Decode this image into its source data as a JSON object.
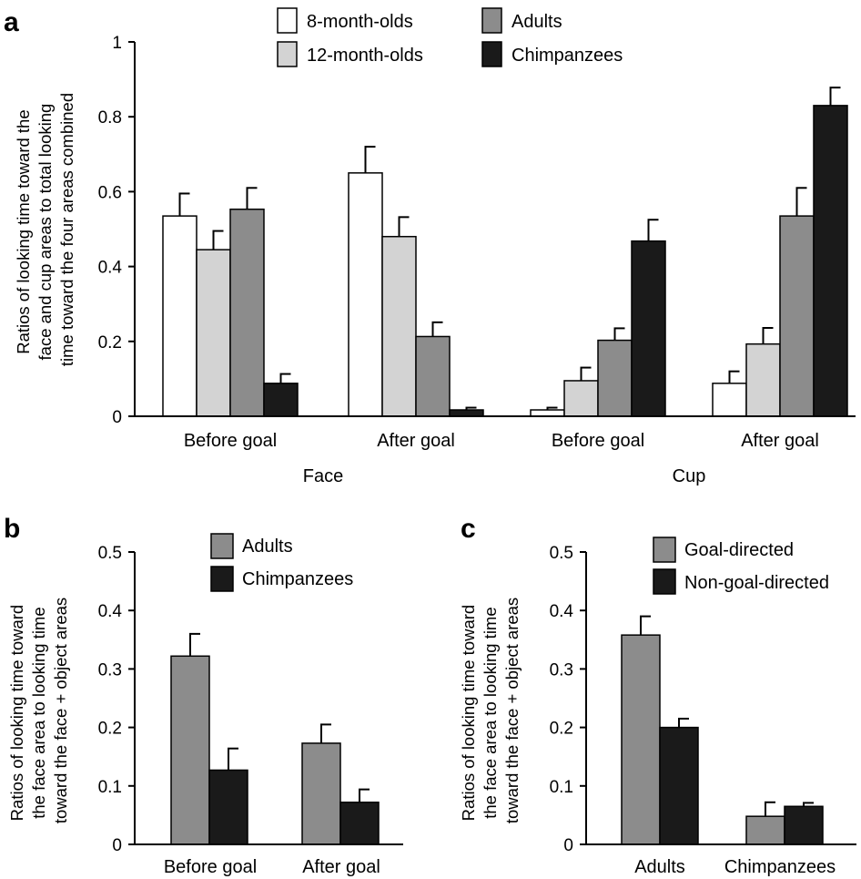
{
  "chart_data": [
    {
      "panel": "a",
      "type": "bar",
      "groups": [
        "Face",
        "Cup"
      ],
      "categories": [
        "Before goal",
        "After goal",
        "Before goal",
        "After goal"
      ],
      "ylabel": [
        "Ratios of looking time toward the",
        "face and cup areas to total looking",
        "time toward the four areas combined"
      ],
      "ylim": [
        0,
        1
      ],
      "yticks": [
        "0",
        "0.2",
        "0.4",
        "0.6",
        "0.8",
        "1"
      ],
      "ytick_values": [
        0,
        0.2,
        0.4,
        0.6,
        0.8,
        1
      ],
      "legend": "top-center",
      "series": [
        {
          "name": "8-month-olds",
          "color": "#ffffff",
          "values": [
            0.535,
            0.65,
            0.017,
            0.088
          ],
          "errors": [
            0.06,
            0.07,
            0.006,
            0.032
          ]
        },
        {
          "name": "12-month-olds",
          "color": "#d3d3d3",
          "values": [
            0.445,
            0.48,
            0.095,
            0.193
          ],
          "errors": [
            0.05,
            0.052,
            0.035,
            0.043
          ]
        },
        {
          "name": "Adults",
          "color": "#8c8c8c",
          "values": [
            0.553,
            0.213,
            0.203,
            0.535
          ],
          "errors": [
            0.057,
            0.038,
            0.032,
            0.075
          ]
        },
        {
          "name": "Chimpanzees",
          "color": "#1a1a1a",
          "values": [
            0.088,
            0.017,
            0.468,
            0.83
          ],
          "errors": [
            0.025,
            0.006,
            0.057,
            0.048
          ]
        }
      ]
    },
    {
      "panel": "b",
      "type": "bar",
      "categories": [
        "Before goal",
        "After goal"
      ],
      "ylabel": [
        "Ratios of looking time toward",
        "the face area to looking time",
        "toward the face + object areas"
      ],
      "ylim": [
        0,
        0.5
      ],
      "yticks": [
        "0",
        "0.1",
        "0.2",
        "0.3",
        "0.4",
        "0.5"
      ],
      "ytick_values": [
        0,
        0.1,
        0.2,
        0.3,
        0.4,
        0.5
      ],
      "legend": "top-center",
      "series": [
        {
          "name": "Adults",
          "color": "#8c8c8c",
          "values": [
            0.322,
            0.173
          ],
          "errors": [
            0.038,
            0.032
          ]
        },
        {
          "name": "Chimpanzees",
          "color": "#1a1a1a",
          "values": [
            0.127,
            0.072
          ],
          "errors": [
            0.037,
            0.022
          ]
        }
      ]
    },
    {
      "panel": "c",
      "type": "bar",
      "categories": [
        "Adults",
        "Chimpanzees"
      ],
      "ylabel": [
        "Ratios of looking time toward",
        "the face area to looking time",
        "toward the face + object areas"
      ],
      "ylim": [
        0,
        0.5
      ],
      "yticks": [
        "0",
        "0.1",
        "0.2",
        "0.3",
        "0.4",
        "0.5"
      ],
      "ytick_values": [
        0,
        0.1,
        0.2,
        0.3,
        0.4,
        0.5
      ],
      "legend": "top-right",
      "series": [
        {
          "name": "Goal-directed",
          "color": "#8c8c8c",
          "values": [
            0.358,
            0.048
          ],
          "errors": [
            0.032,
            0.024
          ]
        },
        {
          "name": "Non-goal-directed",
          "color": "#1a1a1a",
          "values": [
            0.2,
            0.065
          ],
          "errors": [
            0.015,
            0.006
          ]
        }
      ]
    }
  ]
}
